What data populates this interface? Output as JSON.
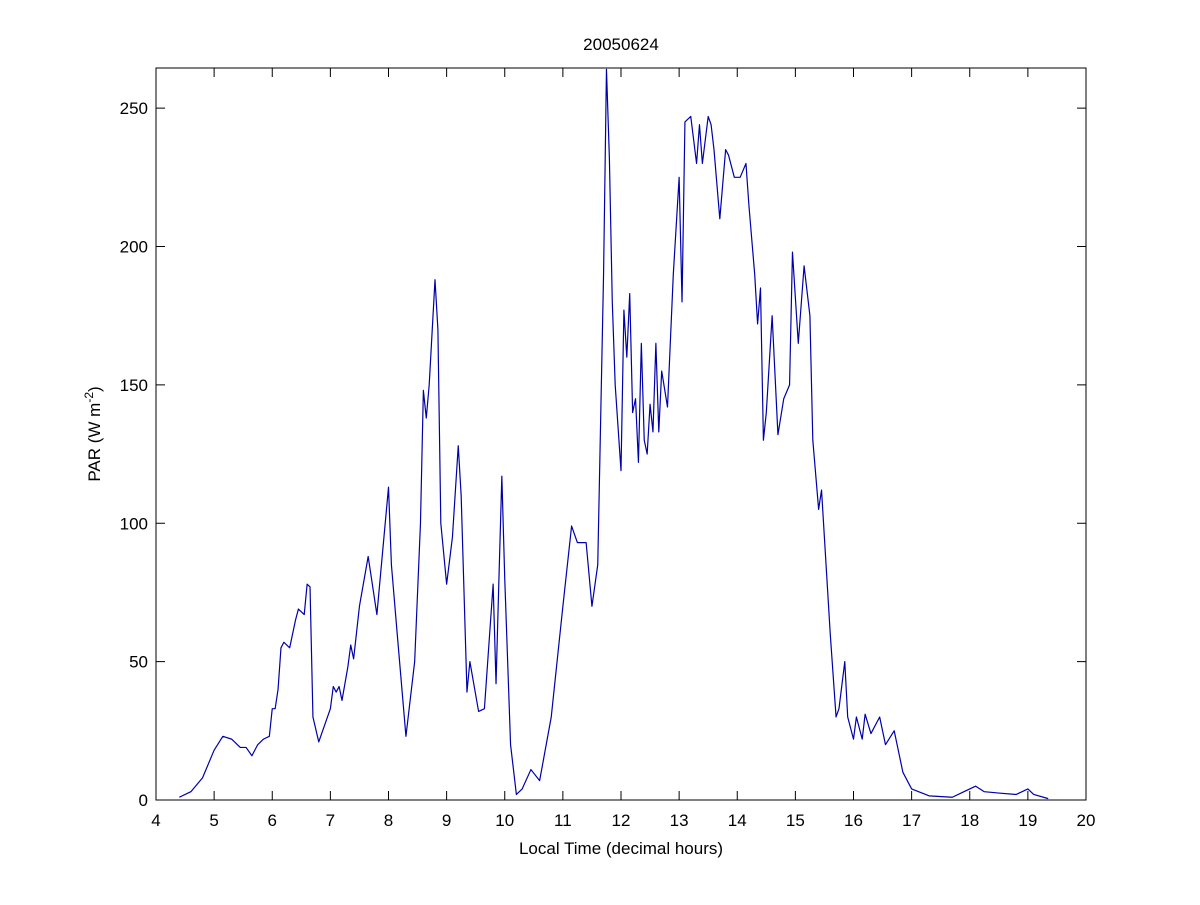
{
  "chart_data": {
    "type": "line",
    "title": "20050624",
    "xlabel": "Local Time (decimal hours)",
    "ylabel_parts": [
      "PAR (W m",
      "-2",
      ")"
    ],
    "xlim": [
      4,
      20
    ],
    "ylim": [
      0,
      264.5
    ],
    "xticks": [
      4,
      5,
      6,
      7,
      8,
      9,
      10,
      11,
      12,
      13,
      14,
      15,
      16,
      17,
      18,
      19,
      20
    ],
    "yticks": [
      0,
      50,
      100,
      150,
      200,
      250
    ],
    "grid": false,
    "series": [
      {
        "name": "PAR",
        "color": "#0000aa",
        "x": [
          4.4,
          4.6,
          4.8,
          5.0,
          5.15,
          5.3,
          5.45,
          5.55,
          5.65,
          5.75,
          5.85,
          5.95,
          6.0,
          6.05,
          6.1,
          6.15,
          6.2,
          6.3,
          6.4,
          6.45,
          6.55,
          6.6,
          6.65,
          6.7,
          6.8,
          6.9,
          7.0,
          7.05,
          7.1,
          7.15,
          7.2,
          7.3,
          7.35,
          7.4,
          7.5,
          7.65,
          7.8,
          7.9,
          8.0,
          8.05,
          8.15,
          8.3,
          8.45,
          8.55,
          8.6,
          8.65,
          8.7,
          8.8,
          8.85,
          8.9,
          9.0,
          9.1,
          9.2,
          9.25,
          9.35,
          9.4,
          9.55,
          9.65,
          9.8,
          9.85,
          9.9,
          9.95,
          10.0,
          10.1,
          10.2,
          10.3,
          10.45,
          10.6,
          10.8,
          11.0,
          11.15,
          11.25,
          11.4,
          11.5,
          11.6,
          11.7,
          11.75,
          11.8,
          11.85,
          11.9,
          12.0,
          12.05,
          12.1,
          12.15,
          12.2,
          12.25,
          12.3,
          12.35,
          12.4,
          12.45,
          12.5,
          12.55,
          12.6,
          12.65,
          12.7,
          12.8,
          12.9,
          13.0,
          13.05,
          13.1,
          13.2,
          13.3,
          13.35,
          13.4,
          13.5,
          13.55,
          13.6,
          13.7,
          13.8,
          13.85,
          13.95,
          14.05,
          14.15,
          14.2,
          14.3,
          14.35,
          14.4,
          14.45,
          14.5,
          14.6,
          14.7,
          14.8,
          14.9,
          14.95,
          15.05,
          15.15,
          15.25,
          15.3,
          15.4,
          15.45,
          15.6,
          15.7,
          15.75,
          15.85,
          15.9,
          16.0,
          16.05,
          16.15,
          16.2,
          16.3,
          16.45,
          16.55,
          16.7,
          16.85,
          17.0,
          17.3,
          17.7,
          17.9,
          18.1,
          18.25,
          18.5,
          18.8,
          19.0,
          19.1,
          19.35
        ],
        "values": [
          1,
          3,
          8,
          18,
          23,
          22,
          19,
          19,
          16,
          20,
          22,
          23,
          33,
          33,
          40,
          55,
          57,
          55,
          65,
          69,
          67,
          78,
          77,
          30,
          21,
          27,
          33,
          41,
          39,
          41,
          36,
          48,
          56,
          51,
          70,
          88,
          67,
          90,
          113,
          85,
          60,
          23,
          50,
          100,
          148,
          138,
          150,
          188,
          170,
          100,
          78,
          95,
          128,
          110,
          39,
          50,
          32,
          33,
          78,
          42,
          80,
          117,
          80,
          20,
          2,
          4,
          11,
          7,
          30,
          70,
          99,
          93,
          93,
          70,
          85,
          190,
          264,
          232,
          180,
          150,
          119,
          177,
          160,
          183,
          140,
          145,
          122,
          165,
          130,
          125,
          143,
          133,
          165,
          133,
          155,
          142,
          190,
          225,
          180,
          245,
          247,
          230,
          244,
          230,
          247,
          244,
          235,
          210,
          235,
          233,
          225,
          225,
          230,
          215,
          190,
          172,
          185,
          130,
          140,
          175,
          132,
          145,
          150,
          198,
          165,
          193,
          175,
          130,
          105,
          112,
          60,
          30,
          33,
          50,
          30,
          22,
          30,
          22,
          31,
          24,
          30,
          20,
          25,
          10,
          4,
          1.5,
          1,
          3,
          5,
          3,
          2.5,
          2,
          4,
          2,
          0.5
        ]
      }
    ]
  }
}
